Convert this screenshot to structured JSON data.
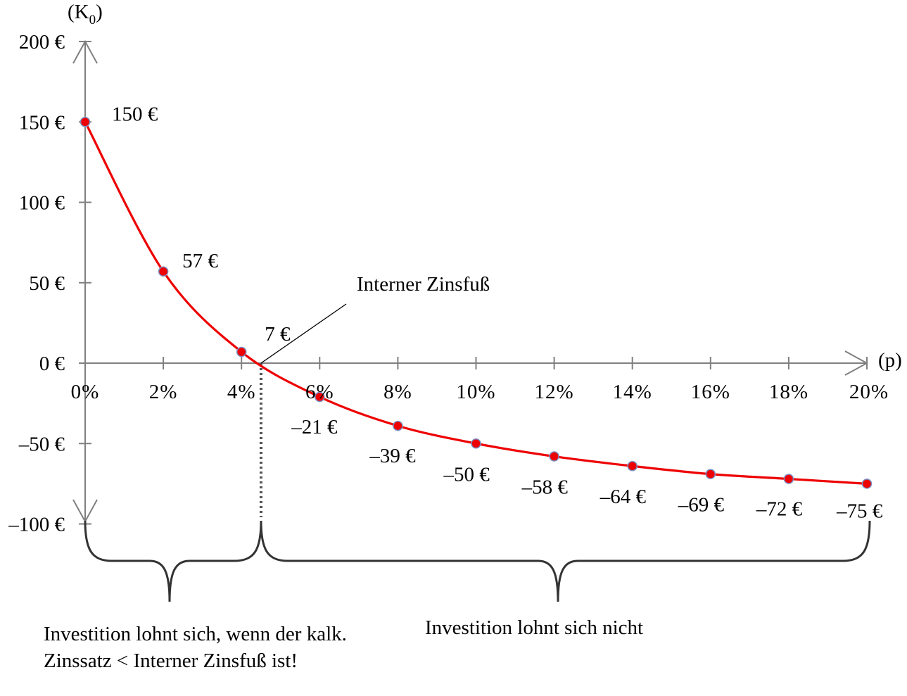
{
  "chart_data": {
    "type": "line",
    "x_label": "(p)",
    "y_label_main": "(K",
    "y_label_sub": "0",
    "y_label_close": ")",
    "x": [
      0,
      2,
      4,
      6,
      8,
      10,
      12,
      14,
      16,
      18,
      20
    ],
    "x_tick_labels": [
      "0%",
      "2%",
      "4%",
      "6%",
      "8%",
      "10%",
      "12%",
      "14%",
      "16%",
      "18%",
      "20%"
    ],
    "y_ticks": [
      200,
      150,
      100,
      50,
      0,
      -50,
      -100
    ],
    "y_tick_labels": [
      "200 €",
      "150 €",
      "100 €",
      "50 €",
      "0 €",
      "–50 €",
      "–100 €"
    ],
    "ylim": [
      -100,
      200
    ],
    "xlim": [
      0,
      20
    ],
    "values": [
      150,
      57,
      7,
      -21,
      -39,
      -50,
      -58,
      -64,
      -69,
      -72,
      -75
    ],
    "data_labels": [
      "150 €",
      "57 €",
      "7 €",
      "–21 €",
      "–39 €",
      "–50 €",
      "–58 €",
      "–64 €",
      "–69 €",
      "–72 €",
      "–75 €"
    ],
    "annotation": "Interner Zinsfuß",
    "irr_x": 4.5,
    "line_color": "#ee0000",
    "marker_color": "#ee0000",
    "axis_color": "#808080"
  },
  "notes": {
    "left": "Investition lohnt sich, wenn der kalk. Zinssatz < Interner Zinsfuß ist!",
    "right": "Investition lohnt sich nicht"
  }
}
